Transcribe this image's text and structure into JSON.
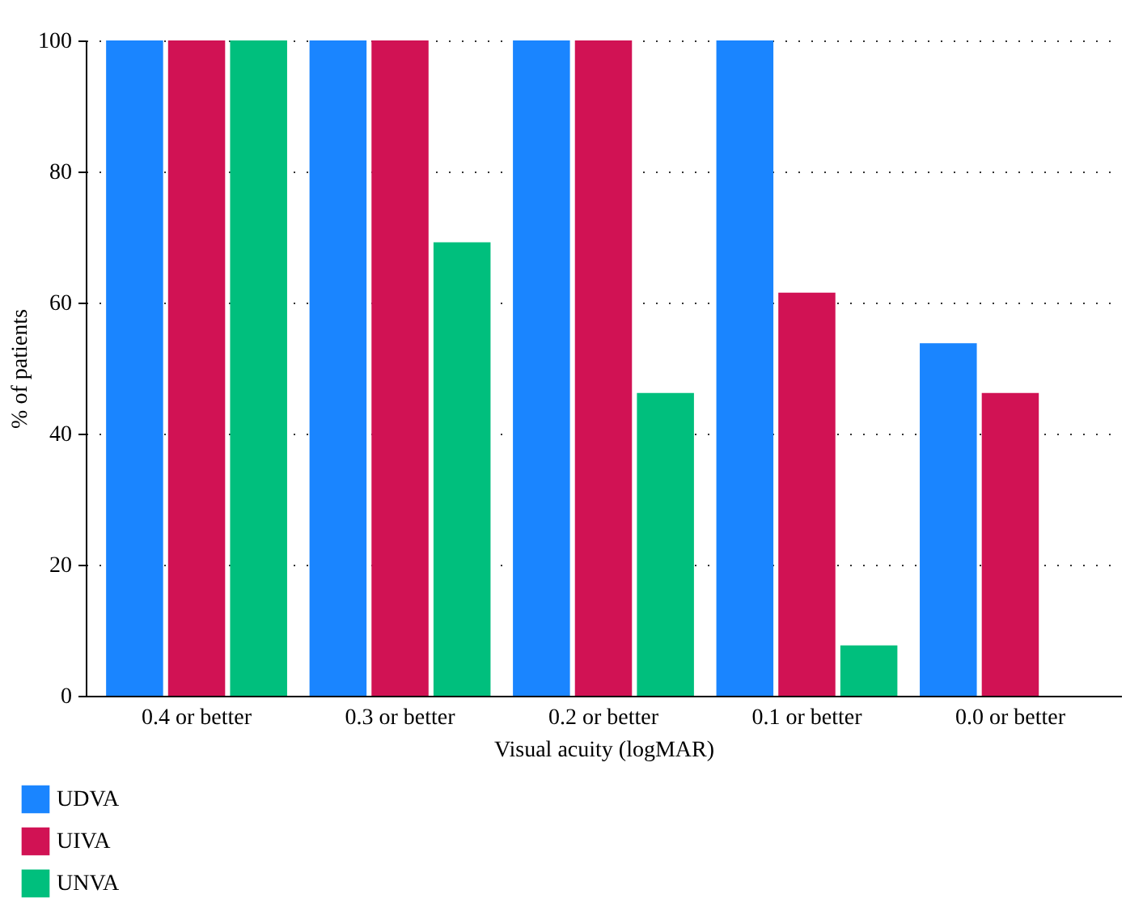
{
  "chart_data": {
    "type": "bar",
    "xlabel": "Visual acuity (logMAR)",
    "ylabel": "% of patients",
    "categories": [
      "0.4 or better",
      "0.3 or better",
      "0.2 or better",
      "0.1 or better",
      "0.0 or better"
    ],
    "series": [
      {
        "name": "UDVA",
        "color": "#1a85ff",
        "values": [
          100,
          100,
          100,
          100,
          53.8
        ]
      },
      {
        "name": "UIVA",
        "color": "#d11254",
        "values": [
          100,
          100,
          100,
          61.5,
          46.2
        ]
      },
      {
        "name": "UNVA",
        "color": "#00bf7d",
        "values": [
          100,
          69.2,
          46.2,
          7.7,
          0
        ]
      }
    ],
    "ylim": [
      0,
      100
    ],
    "yticks": [
      0,
      20,
      40,
      60,
      80,
      100
    ],
    "grid": "y",
    "legend": "bottom left"
  }
}
